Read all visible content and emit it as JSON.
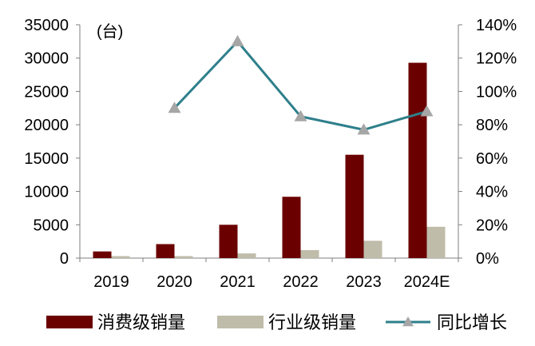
{
  "chart_data": {
    "type": "bar",
    "categories": [
      "2019",
      "2020",
      "2021",
      "2022",
      "2023",
      "2024E"
    ],
    "unit_label": "(台)",
    "left_axis": {
      "min": 0,
      "max": 35000,
      "ticks": [
        "0",
        "5000",
        "10000",
        "15000",
        "20000",
        "25000",
        "30000",
        "35000"
      ]
    },
    "right_axis": {
      "min": 0,
      "max": 140,
      "ticks": [
        "0%",
        "20%",
        "40%",
        "60%",
        "80%",
        "100%",
        "120%",
        "140%"
      ]
    },
    "series": [
      {
        "name": "消费级销量",
        "type": "bar",
        "axis": "left",
        "color": "#6b0000",
        "values": [
          1000,
          2100,
          5000,
          9200,
          15500,
          29300
        ]
      },
      {
        "name": "行业级销量",
        "type": "bar",
        "axis": "left",
        "color": "#bfbcaa",
        "values": [
          300,
          300,
          700,
          1200,
          2600,
          4700
        ]
      },
      {
        "name": "同比增长",
        "type": "line",
        "axis": "right",
        "color": "#2e7f8b",
        "marker_color": "#a6a6a6",
        "values": [
          null,
          90,
          130,
          85,
          77,
          88
        ]
      }
    ]
  }
}
